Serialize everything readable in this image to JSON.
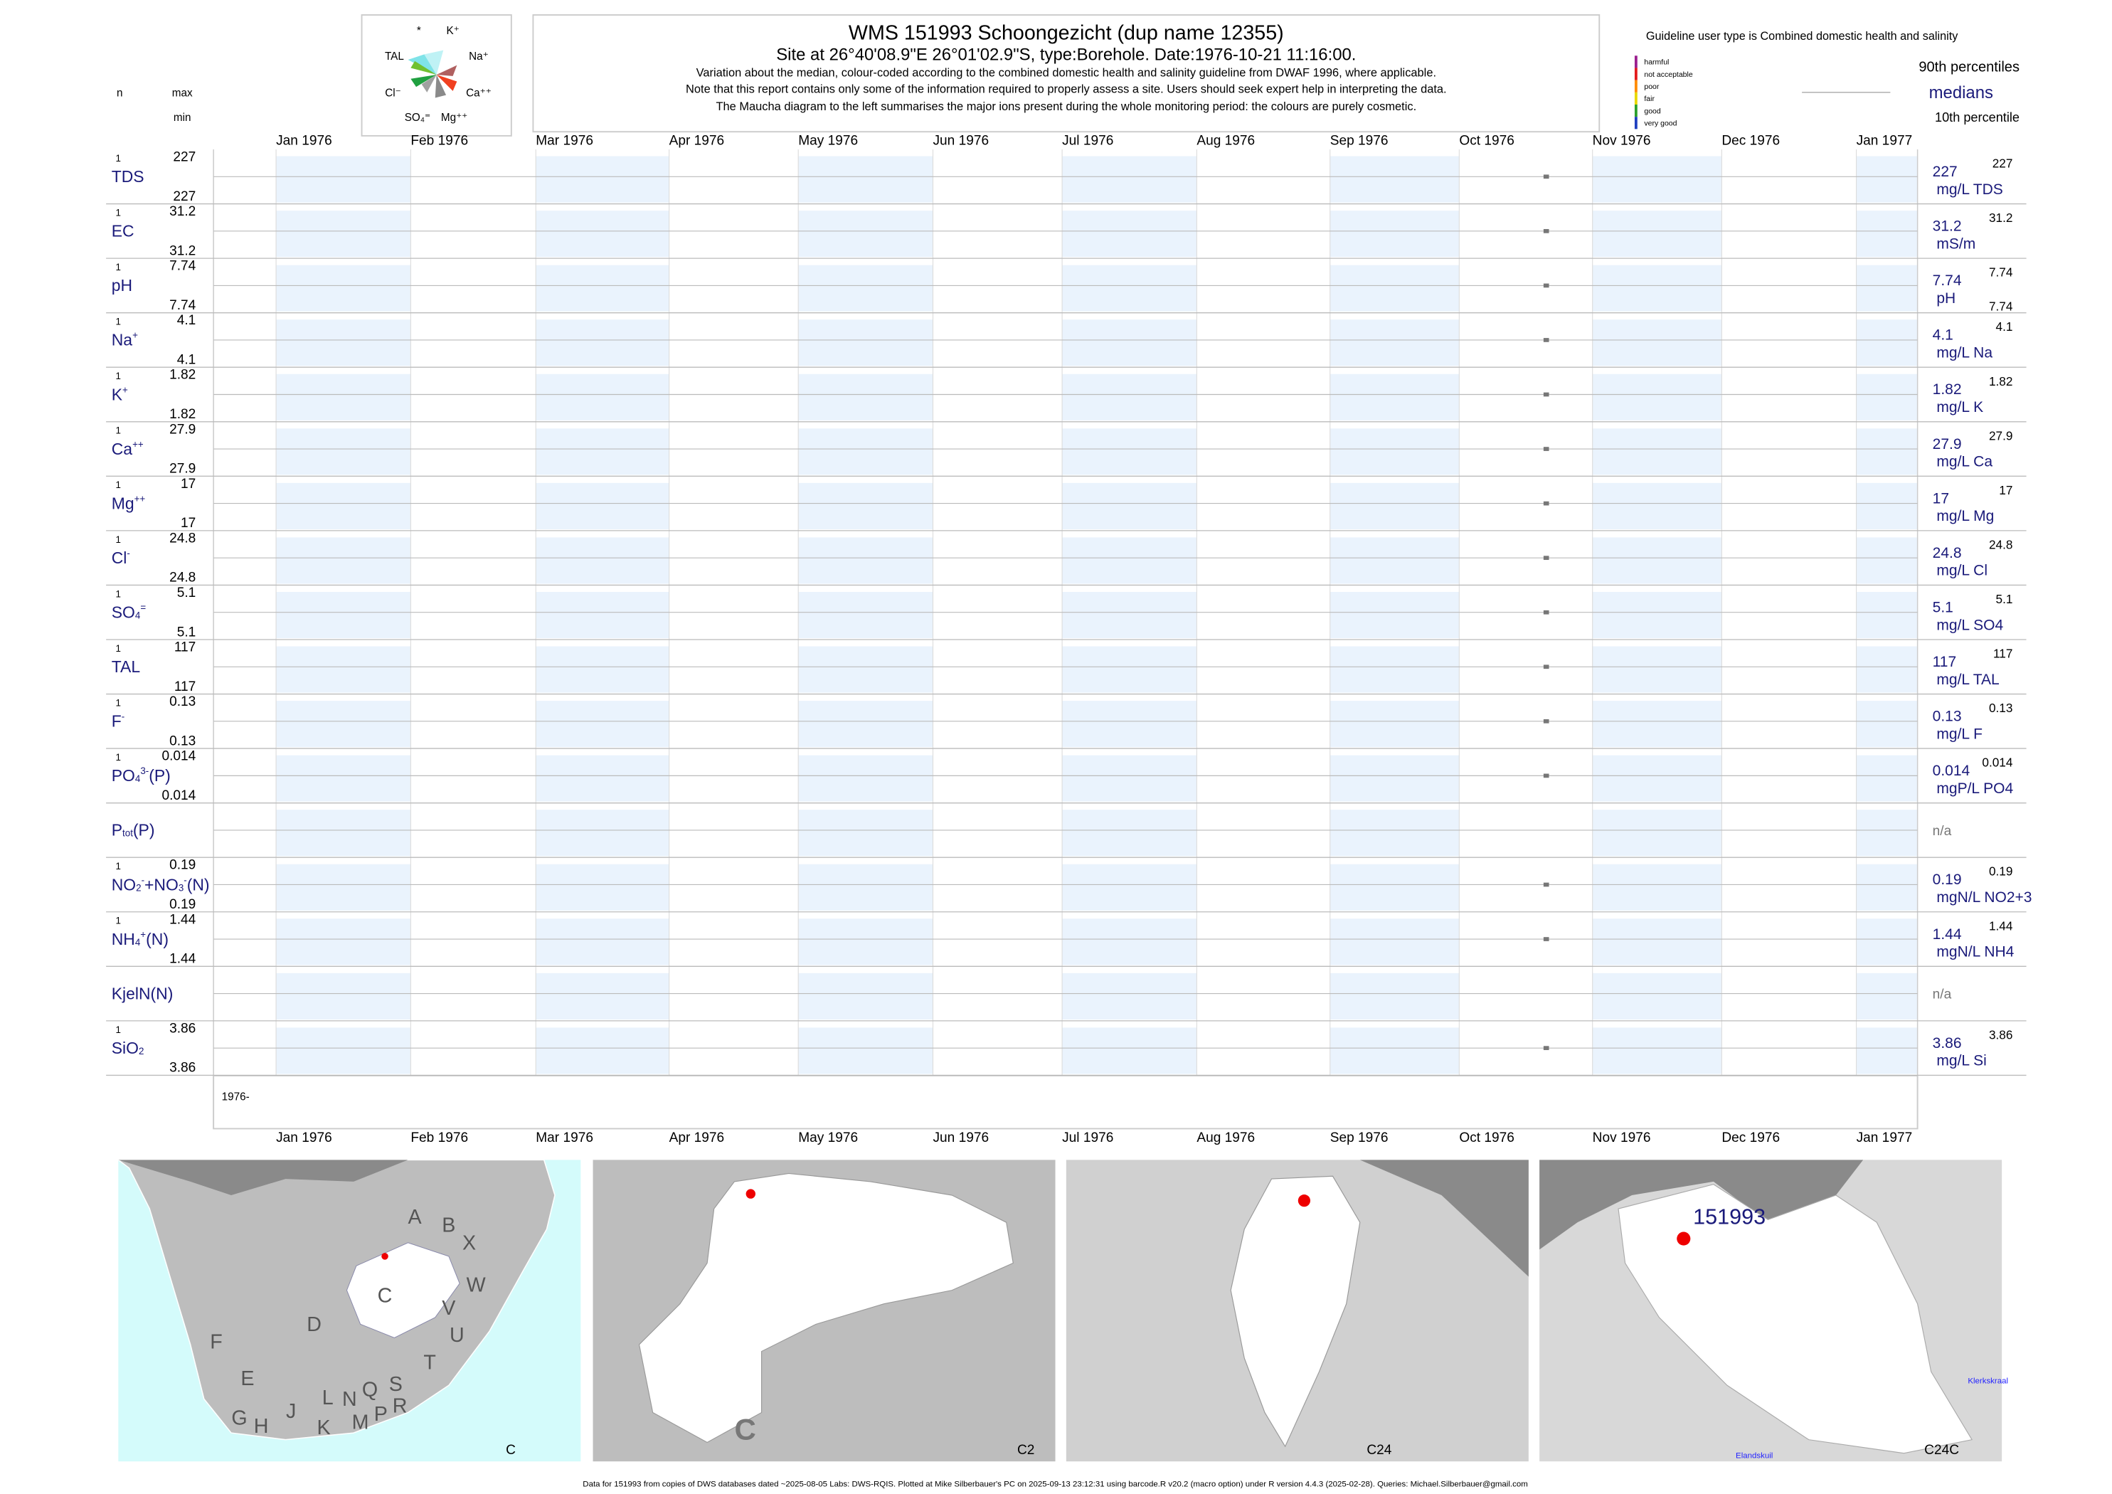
{
  "header": {
    "title": "WMS 151993  Schoongezicht (dup name 12355)",
    "subtitle": "Site at 26°40'08.9\"E 26°01'02.9\"S, type:Borehole. Date:1976-10-21 11:16:00.",
    "notes": [
      "Variation about the median,  colour-coded according to the combined domestic health and salinity guideline from DWAF 1996, where applicable.",
      "Note that this report contains only some of the information required to properly assess a site. Users should seek expert help in interpreting the data.",
      "The Maucha diagram to the left summarises the major ions present during the whole monitoring period: the colours are purely cosmetic."
    ]
  },
  "maucha": {
    "labels": [
      "*",
      "K⁺",
      "TAL",
      "Na⁺",
      "Cl⁻",
      "Ca⁺⁺",
      "SO₄⁼",
      "Mg⁺⁺"
    ]
  },
  "columns": {
    "n": "n",
    "max": "max",
    "min": "min"
  },
  "legend": {
    "guideline": "Guideline user type is Combined domestic health and salinity",
    "classes": [
      {
        "label": "harmful",
        "color": "#9b1f8f"
      },
      {
        "label": "not acceptable",
        "color": "#e31a1c"
      },
      {
        "label": "poor",
        "color": "#ff8c00"
      },
      {
        "label": "fair",
        "color": "#e8d800"
      },
      {
        "label": "good",
        "color": "#2ca02c"
      },
      {
        "label": "very good",
        "color": "#1f3fbf"
      }
    ],
    "p90": "90th percentiles",
    "median": "medians",
    "p10": "10th percentile"
  },
  "months": [
    "Jan 1976",
    "Feb 1976",
    "Mar 1976",
    "Apr 1976",
    "May 1976",
    "Jun 1976",
    "Jul 1976",
    "Aug 1976",
    "Sep 1976",
    "Oct 1976",
    "Nov 1976",
    "Dec 1976",
    "Jan 1977"
  ],
  "year_label": "1976-",
  "rows": [
    {
      "label": [
        {
          "t": "TDS"
        }
      ],
      "n": 1,
      "max": 227,
      "min": 227,
      "median": 227,
      "p90": 227,
      "unit": "mg/L TDS"
    },
    {
      "label": [
        {
          "t": "EC"
        }
      ],
      "n": 1,
      "max": 31.2,
      "min": 31.2,
      "median": 31.2,
      "p90": 31.2,
      "unit": "mS/m"
    },
    {
      "label": [
        {
          "t": "pH"
        }
      ],
      "n": 1,
      "max": 7.74,
      "min": 7.74,
      "median": 7.74,
      "p90": 7.74,
      "p10": 7.74,
      "unit": "pH"
    },
    {
      "label": [
        {
          "t": "Na"
        },
        {
          "t": "+",
          "s": "sup"
        }
      ],
      "n": 1,
      "max": 4.1,
      "min": 4.1,
      "median": 4.1,
      "p90": 4.1,
      "unit": "mg/L Na"
    },
    {
      "label": [
        {
          "t": "K"
        },
        {
          "t": "+",
          "s": "sup"
        }
      ],
      "n": 1,
      "max": 1.82,
      "min": 1.82,
      "median": 1.82,
      "p90": 1.82,
      "unit": "mg/L K"
    },
    {
      "label": [
        {
          "t": "Ca"
        },
        {
          "t": "++",
          "s": "sup"
        }
      ],
      "n": 1,
      "max": 27.9,
      "min": 27.9,
      "median": 27.9,
      "p90": 27.9,
      "unit": "mg/L Ca"
    },
    {
      "label": [
        {
          "t": "Mg"
        },
        {
          "t": "++",
          "s": "sup"
        }
      ],
      "n": 1,
      "max": 17,
      "min": 17,
      "median": 17,
      "p90": 17,
      "unit": "mg/L Mg"
    },
    {
      "label": [
        {
          "t": "Cl"
        },
        {
          "t": "-",
          "s": "sup"
        }
      ],
      "n": 1,
      "max": 24.8,
      "min": 24.8,
      "median": 24.8,
      "p90": 24.8,
      "unit": "mg/L Cl"
    },
    {
      "label": [
        {
          "t": "SO"
        },
        {
          "t": "4",
          "s": "sub"
        },
        {
          "t": "=",
          "s": "sup"
        }
      ],
      "n": 1,
      "max": 5.1,
      "min": 5.1,
      "median": 5.1,
      "p90": 5.1,
      "unit": "mg/L SO4"
    },
    {
      "label": [
        {
          "t": "TAL"
        }
      ],
      "n": 1,
      "max": 117,
      "min": 117,
      "median": 117,
      "p90": 117,
      "unit": "mg/L TAL"
    },
    {
      "label": [
        {
          "t": "F"
        },
        {
          "t": "-",
          "s": "sup"
        }
      ],
      "n": 1,
      "max": 0.13,
      "min": 0.13,
      "median": 0.13,
      "p90": 0.13,
      "unit": "mg/L F"
    },
    {
      "label": [
        {
          "t": "PO"
        },
        {
          "t": "4",
          "s": "sub"
        },
        {
          "t": "3-",
          "s": "sup"
        },
        {
          "t": "(P)"
        }
      ],
      "n": 1,
      "max": 0.014,
      "min": 0.014,
      "median": 0.014,
      "p90": 0.014,
      "unit": "mgP/L PO4"
    },
    {
      "label": [
        {
          "t": "P"
        },
        {
          "t": "tot",
          "s": "sub"
        },
        {
          "t": "(P)"
        }
      ],
      "na": "n/a"
    },
    {
      "label": [
        {
          "t": "NO"
        },
        {
          "t": "2",
          "s": "sub"
        },
        {
          "t": "-",
          "s": "sup"
        },
        {
          "t": "+NO"
        },
        {
          "t": "3",
          "s": "sub"
        },
        {
          "t": "-",
          "s": "sup"
        },
        {
          "t": "(N)"
        }
      ],
      "n": 1,
      "max": 0.19,
      "min": 0.19,
      "median": 0.19,
      "p90": 0.19,
      "unit": "mgN/L NO2+3"
    },
    {
      "label": [
        {
          "t": "NH"
        },
        {
          "t": "4",
          "s": "sub"
        },
        {
          "t": "+",
          "s": "sup"
        },
        {
          "t": "(N)"
        }
      ],
      "n": 1,
      "max": 1.44,
      "min": 1.44,
      "median": 1.44,
      "p90": 1.44,
      "unit": "mgN/L NH4"
    },
    {
      "label": [
        {
          "t": "KjelN(N)"
        }
      ],
      "na": "n/a"
    },
    {
      "label": [
        {
          "t": "SiO"
        },
        {
          "t": "2",
          "s": "sub"
        }
      ],
      "n": 1,
      "max": 3.86,
      "min": 3.86,
      "median": 3.86,
      "p90": 3.86,
      "unit": "mg/L Si"
    }
  ],
  "maps": [
    {
      "name": "C",
      "labels": [
        "A",
        "B",
        "X",
        "W",
        "C",
        "D",
        "V",
        "U",
        "T",
        "F",
        "E",
        "S",
        "R",
        "G",
        "H",
        "J",
        "K",
        "L",
        "N",
        "Q",
        "M",
        "P"
      ]
    },
    {
      "name": "C2",
      "labels": [
        "C"
      ]
    },
    {
      "name": "C24",
      "labels": []
    },
    {
      "name": "C24C",
      "labels": [
        "151993",
        "Klerkskraal",
        "Elandskuil"
      ]
    }
  ],
  "footer": "Data for 151993 from copies of DWS databases dated ~2025-08-05 Labs: DWS-RQIS. Plotted at Mike Silberbauer's PC on 2025-09-13 23:12:31 using barcode.R v20.2 (macro option) under R version 4.4.3 (2025-02-28). Queries: Michael.Silberbauer@gmail.com"
}
